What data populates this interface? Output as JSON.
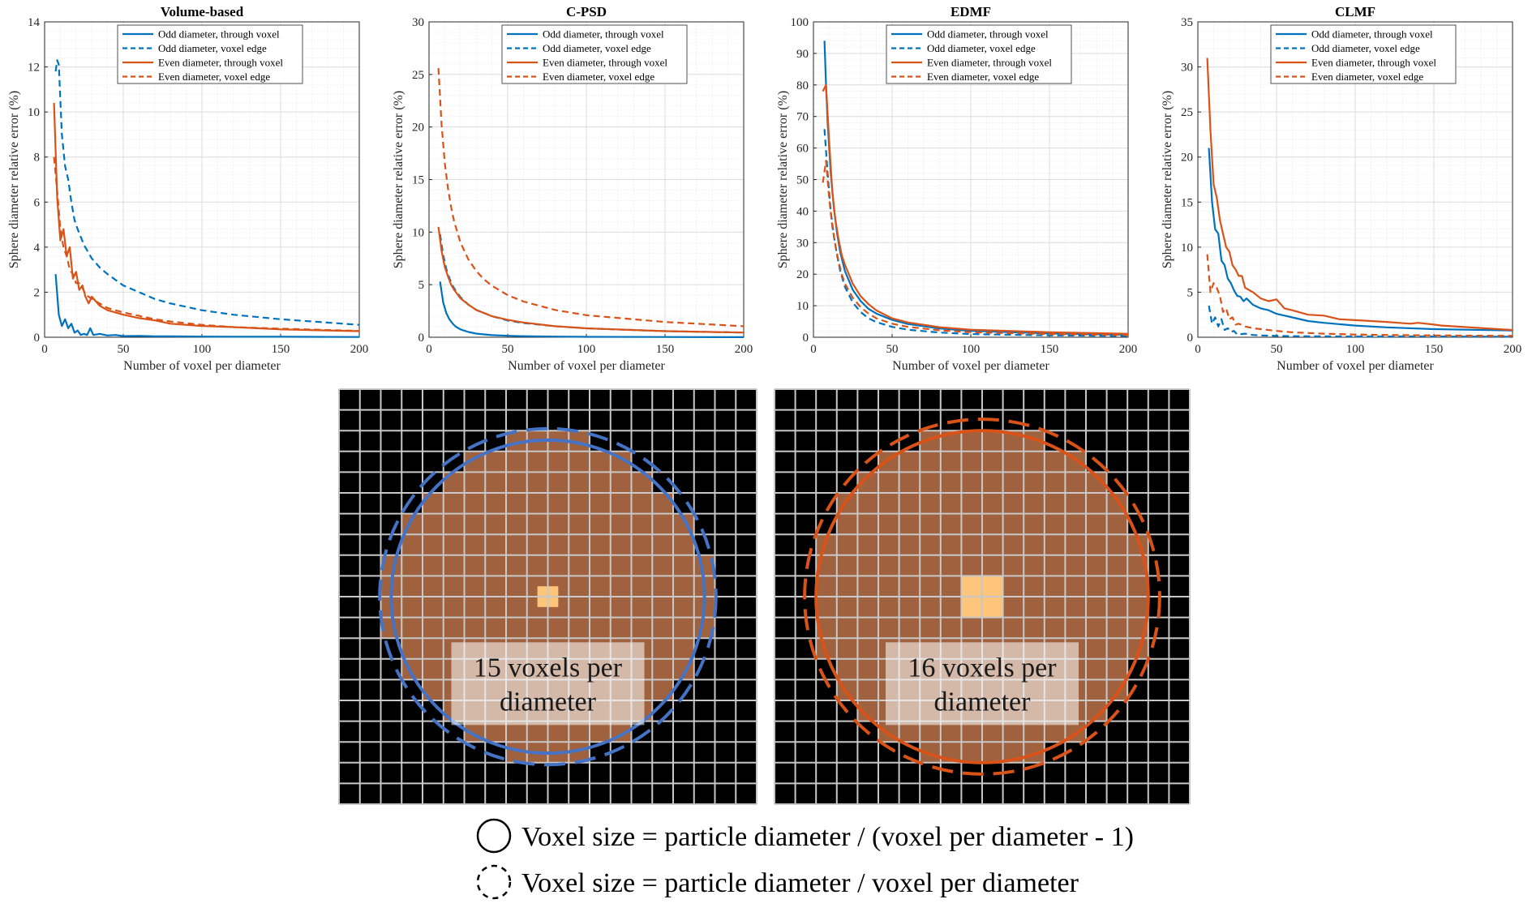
{
  "chart_data": [
    {
      "type": "line",
      "title": "Volume-based",
      "xlabel": "Number of voxel per diameter",
      "ylabel": "Sphere diameter relative error (%)",
      "xlim": [
        0,
        200
      ],
      "ylim": [
        0,
        14
      ],
      "xticks": [
        0,
        50,
        100,
        150,
        200
      ],
      "yticks": [
        0,
        2,
        4,
        6,
        8,
        10,
        12,
        14
      ],
      "grid": "on",
      "legend_position": "top",
      "series": [
        {
          "name": "Odd diameter, through voxel",
          "color": "#0072BD",
          "dash": "solid",
          "x": [
            7,
            9,
            11,
            13,
            15,
            17,
            19,
            21,
            23,
            25,
            27,
            29,
            31,
            35,
            40,
            45,
            50,
            60,
            70,
            80,
            100,
            120,
            150,
            200
          ],
          "y": [
            2.8,
            1.0,
            0.5,
            0.8,
            0.4,
            0.6,
            0.2,
            0.3,
            0.1,
            0.15,
            0.1,
            0.4,
            0.1,
            0.15,
            0.08,
            0.1,
            0.05,
            0.06,
            0.04,
            0.04,
            0.03,
            0.02,
            0.02,
            0.01
          ]
        },
        {
          "name": "Odd diameter, voxel edge",
          "color": "#0072BD",
          "dash": "dashed",
          "x": [
            7,
            8,
            9,
            11,
            13,
            15,
            17,
            19,
            21,
            25,
            30,
            35,
            40,
            50,
            60,
            70,
            80,
            100,
            120,
            150,
            200
          ],
          "y": [
            11.8,
            12.3,
            12.1,
            9.0,
            7.6,
            7.0,
            6.0,
            5.2,
            4.8,
            4.1,
            3.5,
            3.1,
            2.8,
            2.3,
            2.0,
            1.7,
            1.5,
            1.2,
            1.0,
            0.8,
            0.55
          ]
        },
        {
          "name": "Even diameter, through voxel",
          "color": "#D95319",
          "dash": "solid",
          "x": [
            6,
            8,
            10,
            12,
            14,
            16,
            18,
            20,
            22,
            24,
            26,
            28,
            30,
            35,
            40,
            45,
            50,
            60,
            70,
            80,
            100,
            120,
            150,
            200
          ],
          "y": [
            10.4,
            6.2,
            4.3,
            4.8,
            3.6,
            4.0,
            2.6,
            2.9,
            2.1,
            2.3,
            1.8,
            1.5,
            1.8,
            1.4,
            1.2,
            1.1,
            1.0,
            0.85,
            0.75,
            0.6,
            0.5,
            0.45,
            0.35,
            0.27
          ]
        },
        {
          "name": "Even diameter, voxel edge",
          "color": "#D95319",
          "dash": "dashed",
          "x": [
            6,
            8,
            10,
            12,
            14,
            16,
            18,
            20,
            22,
            24,
            26,
            28,
            30,
            35,
            40,
            45,
            50,
            60,
            70,
            80,
            100,
            120,
            150,
            200
          ],
          "y": [
            8.0,
            6.5,
            4.8,
            4.0,
            3.6,
            3.0,
            2.8,
            2.4,
            2.4,
            2.2,
            1.9,
            1.8,
            1.7,
            1.5,
            1.3,
            1.2,
            1.1,
            0.95,
            0.8,
            0.7,
            0.55,
            0.45,
            0.38,
            0.28
          ]
        }
      ]
    },
    {
      "type": "line",
      "title": "C-PSD",
      "xlabel": "Number of voxel per diameter",
      "ylabel": "Sphere diameter relative error (%)",
      "xlim": [
        0,
        200
      ],
      "ylim": [
        0,
        30
      ],
      "xticks": [
        0,
        50,
        100,
        150,
        200
      ],
      "yticks": [
        0,
        5,
        10,
        15,
        20,
        25,
        30
      ],
      "grid": "on",
      "legend_position": "top",
      "series": [
        {
          "name": "Odd diameter, through voxel",
          "color": "#0072BD",
          "dash": "solid",
          "x": [
            7,
            9,
            11,
            13,
            15,
            17,
            20,
            25,
            30,
            35,
            40,
            50,
            60,
            80,
            100,
            150,
            200
          ],
          "y": [
            5.3,
            3.3,
            2.3,
            1.7,
            1.3,
            1.0,
            0.75,
            0.5,
            0.35,
            0.27,
            0.2,
            0.14,
            0.1,
            0.06,
            0.04,
            0.02,
            0.01
          ]
        },
        {
          "name": "Odd diameter, voxel edge",
          "color": "#0072BD",
          "dash": "dashed",
          "x": [
            7,
            9,
            11,
            13,
            15,
            17,
            20,
            25,
            30,
            35,
            40,
            50,
            60,
            80,
            100,
            150,
            200
          ],
          "y": [
            9.8,
            7.8,
            6.5,
            5.6,
            4.9,
            4.4,
            3.8,
            3.1,
            2.6,
            2.3,
            2.0,
            1.6,
            1.35,
            1.05,
            0.85,
            0.58,
            0.45
          ]
        },
        {
          "name": "Even diameter, through voxel",
          "color": "#D95319",
          "dash": "solid",
          "x": [
            6,
            8,
            10,
            12,
            14,
            16,
            20,
            25,
            30,
            35,
            40,
            50,
            60,
            80,
            100,
            150,
            200
          ],
          "y": [
            10.5,
            8.2,
            6.7,
            5.8,
            5.0,
            4.5,
            3.7,
            3.1,
            2.6,
            2.3,
            2.0,
            1.65,
            1.4,
            1.05,
            0.85,
            0.58,
            0.45
          ]
        },
        {
          "name": "Even diameter, voxel edge",
          "color": "#D95319",
          "dash": "dashed",
          "x": [
            6,
            8,
            10,
            12,
            14,
            16,
            20,
            25,
            30,
            35,
            40,
            50,
            60,
            80,
            100,
            150,
            200
          ],
          "y": [
            25.6,
            20.2,
            16.6,
            14.2,
            12.4,
            11.0,
            9.0,
            7.4,
            6.3,
            5.5,
            4.9,
            4.0,
            3.4,
            2.6,
            2.1,
            1.45,
            1.05
          ]
        }
      ]
    },
    {
      "type": "line",
      "title": "EDMF",
      "xlabel": "Number of voxel per diameter",
      "ylabel": "Sphere diameter relative error (%)",
      "xlim": [
        0,
        200
      ],
      "ylim": [
        0,
        100
      ],
      "xticks": [
        0,
        50,
        100,
        150,
        200
      ],
      "yticks": [
        0,
        10,
        20,
        30,
        40,
        50,
        60,
        70,
        80,
        90,
        100
      ],
      "grid": "on",
      "legend_position": "top",
      "series": [
        {
          "name": "Odd diameter, through voxel",
          "color": "#0072BD",
          "dash": "solid",
          "x": [
            7,
            8,
            9,
            11,
            13,
            15,
            17,
            20,
            25,
            30,
            35,
            40,
            50,
            60,
            80,
            100,
            150,
            200
          ],
          "y": [
            94,
            80,
            68,
            52,
            41,
            33,
            27,
            21,
            15,
            11.5,
            9,
            7.5,
            5.5,
            4.2,
            2.8,
            2.0,
            1.2,
            0.8
          ]
        },
        {
          "name": "Odd diameter, voxel edge",
          "color": "#0072BD",
          "dash": "dashed",
          "x": [
            7,
            9,
            11,
            13,
            15,
            17,
            20,
            25,
            30,
            35,
            40,
            50,
            60,
            80,
            100,
            150,
            200
          ],
          "y": [
            66,
            52,
            40,
            32,
            26,
            21,
            16,
            11,
            8,
            6,
            4.8,
            3.3,
            2.4,
            1.5,
            1.0,
            0.6,
            0.4
          ]
        },
        {
          "name": "Even diameter, through voxel",
          "color": "#D95319",
          "dash": "solid",
          "x": [
            6,
            8,
            10,
            12,
            14,
            16,
            18,
            20,
            25,
            30,
            35,
            40,
            50,
            60,
            80,
            100,
            150,
            200
          ],
          "y": [
            78,
            80,
            62,
            46,
            37,
            31,
            26,
            23,
            17,
            13,
            10.5,
            8.5,
            6,
            4.7,
            3.2,
            2.4,
            1.6,
            1.1
          ]
        },
        {
          "name": "Even diameter, voxel edge",
          "color": "#D95319",
          "dash": "dashed",
          "x": [
            6,
            8,
            10,
            12,
            14,
            16,
            18,
            20,
            25,
            30,
            35,
            40,
            50,
            60,
            80,
            100,
            150,
            200
          ],
          "y": [
            49,
            56,
            44,
            35,
            29,
            24,
            20,
            17,
            12.5,
            9.5,
            7.5,
            6,
            4.3,
            3.3,
            2.2,
            1.6,
            1.0,
            0.7
          ]
        }
      ]
    },
    {
      "type": "line",
      "title": "CLMF",
      "xlabel": "Number of voxel per diameter",
      "ylabel": "Sphere diameter relative error (%)",
      "xlim": [
        0,
        200
      ],
      "ylim": [
        0,
        35
      ],
      "xticks": [
        0,
        50,
        100,
        150,
        200
      ],
      "yticks": [
        0,
        5,
        10,
        15,
        20,
        25,
        30,
        35
      ],
      "grid": "on",
      "legend_position": "top",
      "series": [
        {
          "name": "Odd diameter, through voxel",
          "color": "#0072BD",
          "dash": "solid",
          "x": [
            7,
            9,
            11,
            13,
            15,
            17,
            19,
            21,
            23,
            25,
            27,
            29,
            31,
            35,
            40,
            45,
            50,
            60,
            70,
            80,
            100,
            120,
            150,
            200
          ],
          "y": [
            21,
            15,
            12,
            11.5,
            8.5,
            8.0,
            6.5,
            6.0,
            5.2,
            4.6,
            4.5,
            4.0,
            4.3,
            3.6,
            3.2,
            3.0,
            2.6,
            2.2,
            1.8,
            1.6,
            1.3,
            1.1,
            0.9,
            0.75
          ]
        },
        {
          "name": "Odd diameter, voxel edge",
          "color": "#0072BD",
          "dash": "dashed",
          "x": [
            7,
            9,
            11,
            13,
            15,
            17,
            19,
            21,
            23,
            25,
            30,
            35,
            40,
            50,
            60,
            80,
            100,
            120,
            140,
            150,
            200
          ],
          "y": [
            3.5,
            1.5,
            2.2,
            1.2,
            2.0,
            0.8,
            1.0,
            0.6,
            0.7,
            0.3,
            0.4,
            0.25,
            0.2,
            0.15,
            0.12,
            0.1,
            0.08,
            0.08,
            0.1,
            0.08,
            0.05
          ]
        },
        {
          "name": "Even diameter, through voxel",
          "color": "#D95319",
          "dash": "solid",
          "x": [
            6,
            8,
            10,
            12,
            14,
            16,
            18,
            20,
            22,
            24,
            26,
            28,
            30,
            35,
            40,
            45,
            50,
            55,
            60,
            70,
            80,
            90,
            100,
            120,
            135,
            140,
            150,
            155,
            200
          ],
          "y": [
            31,
            23,
            17,
            15.5,
            13,
            11.5,
            10,
            9.5,
            8,
            7.5,
            6.8,
            6.8,
            5.5,
            5.0,
            4.3,
            4.0,
            4.2,
            3.2,
            3.0,
            2.5,
            2.4,
            2.0,
            1.9,
            1.7,
            1.5,
            1.6,
            1.4,
            1.3,
            0.8
          ]
        },
        {
          "name": "Even diameter, voxel edge",
          "color": "#D95319",
          "dash": "dashed",
          "x": [
            6,
            8,
            10,
            12,
            14,
            16,
            18,
            20,
            22,
            24,
            26,
            30,
            35,
            40,
            50,
            60,
            80,
            100,
            120,
            150,
            200
          ],
          "y": [
            9.2,
            5.0,
            6.0,
            5.5,
            4.6,
            2.8,
            3.2,
            2.0,
            2.2,
            1.4,
            1.5,
            1.2,
            1.0,
            0.9,
            0.7,
            0.55,
            0.4,
            0.3,
            0.25,
            0.2,
            0.15
          ]
        }
      ]
    }
  ],
  "illustrations": [
    {
      "label_line1": "15 voxels per",
      "label_line2": "diameter",
      "color": "#4472C4"
    },
    {
      "label_line1": "16 voxels per",
      "label_line2": "diameter",
      "color": "#D95319"
    }
  ],
  "legend_notes": {
    "solid": "Voxel size = particle diameter / (voxel per diameter - 1)",
    "dashed": "Voxel size = particle diameter / voxel per diameter"
  }
}
